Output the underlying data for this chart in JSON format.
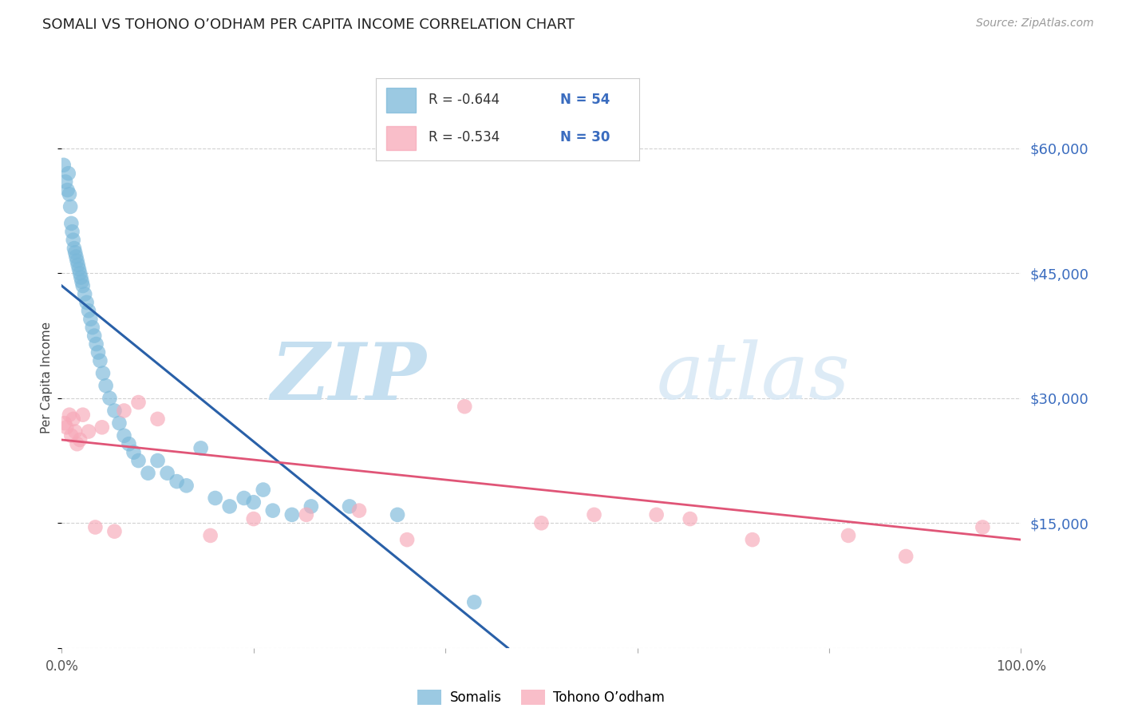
{
  "title": "SOMALI VS TOHONO O’ODHAM PER CAPITA INCOME CORRELATION CHART",
  "source": "Source: ZipAtlas.com",
  "ylabel": "Per Capita Income",
  "xlim": [
    0.0,
    1.0
  ],
  "ylim": [
    0,
    65000
  ],
  "yticks": [
    0,
    15000,
    30000,
    45000,
    60000
  ],
  "ytick_labels": [
    "",
    "$15,000",
    "$30,000",
    "$45,000",
    "$60,000"
  ],
  "legend_r1": "R = -0.644",
  "legend_n1": "N = 54",
  "legend_r2": "R = -0.534",
  "legend_n2": "N = 30",
  "series1_label": "Somalis",
  "series2_label": "Tohono O’odham",
  "series1_color": "#7ab8d9",
  "series2_color": "#f7a8b8",
  "line1_color": "#2960a8",
  "line2_color": "#e05577",
  "background_color": "#ffffff",
  "somali_x": [
    0.002,
    0.004,
    0.006,
    0.007,
    0.008,
    0.009,
    0.01,
    0.011,
    0.012,
    0.013,
    0.014,
    0.015,
    0.016,
    0.017,
    0.018,
    0.019,
    0.02,
    0.021,
    0.022,
    0.024,
    0.026,
    0.028,
    0.03,
    0.032,
    0.034,
    0.036,
    0.038,
    0.04,
    0.043,
    0.046,
    0.05,
    0.055,
    0.06,
    0.065,
    0.07,
    0.075,
    0.08,
    0.09,
    0.1,
    0.11,
    0.12,
    0.13,
    0.145,
    0.16,
    0.175,
    0.19,
    0.2,
    0.21,
    0.22,
    0.24,
    0.26,
    0.3,
    0.35,
    0.43
  ],
  "somali_y": [
    58000,
    56000,
    55000,
    57000,
    54500,
    53000,
    51000,
    50000,
    49000,
    48000,
    47500,
    47000,
    46500,
    46000,
    45500,
    45000,
    44500,
    44000,
    43500,
    42500,
    41500,
    40500,
    39500,
    38500,
    37500,
    36500,
    35500,
    34500,
    33000,
    31500,
    30000,
    28500,
    27000,
    25500,
    24500,
    23500,
    22500,
    21000,
    22500,
    21000,
    20000,
    19500,
    24000,
    18000,
    17000,
    18000,
    17500,
    19000,
    16500,
    16000,
    17000,
    17000,
    16000,
    5500
  ],
  "tohono_x": [
    0.003,
    0.005,
    0.008,
    0.01,
    0.012,
    0.014,
    0.016,
    0.019,
    0.022,
    0.028,
    0.035,
    0.042,
    0.055,
    0.065,
    0.08,
    0.1,
    0.155,
    0.2,
    0.255,
    0.31,
    0.36,
    0.42,
    0.5,
    0.555,
    0.62,
    0.655,
    0.72,
    0.82,
    0.88,
    0.96
  ],
  "tohono_y": [
    27000,
    26500,
    28000,
    25500,
    27500,
    26000,
    24500,
    25000,
    28000,
    26000,
    14500,
    26500,
    14000,
    28500,
    29500,
    27500,
    13500,
    15500,
    16000,
    16500,
    13000,
    29000,
    15000,
    16000,
    16000,
    15500,
    13000,
    13500,
    11000,
    14500
  ],
  "line1_x0": 0.0,
  "line1_x1": 0.465,
  "line1_y0": 43500,
  "line1_y1": 0,
  "line2_x0": 0.0,
  "line2_x1": 1.0,
  "line2_y0": 25000,
  "line2_y1": 13000
}
